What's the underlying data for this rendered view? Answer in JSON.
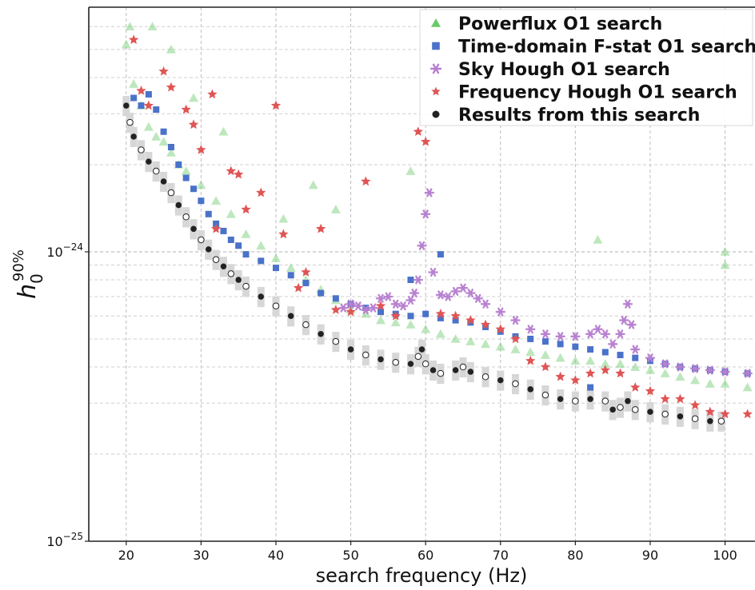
{
  "chart_data": {
    "type": "scatter",
    "title": "",
    "xlabel": "search frequency (Hz)",
    "ylabel": "h_0^{90%}",
    "ylabel_base": "h",
    "ylabel_sub": "0",
    "ylabel_sup": "90%",
    "xlim": [
      15,
      104
    ],
    "ylim": [
      1e-25,
      7e-24
    ],
    "yscale": "log",
    "grid": true,
    "legend_position": "top-right",
    "x_ticks": [
      20,
      30,
      40,
      50,
      60,
      70,
      80,
      90,
      100
    ],
    "x_tick_labels": [
      "20",
      "30",
      "40",
      "50",
      "60",
      "70",
      "80",
      "90",
      "100"
    ],
    "y_ticks": [
      1e-25,
      1e-24
    ],
    "y_tick_bases": [
      "10",
      "10"
    ],
    "y_tick_exponents": [
      "−25",
      "−24"
    ],
    "series": [
      {
        "name": "Powerflux O1 search",
        "marker": "triangle",
        "color": "#6cc96c",
        "points": [
          [
            20,
            5.2e-24
          ],
          [
            20.5,
            6e-24
          ],
          [
            21,
            3.8e-24
          ],
          [
            22,
            3.2e-24
          ],
          [
            23,
            2.7e-24
          ],
          [
            24,
            2.5e-24
          ],
          [
            25,
            2.4e-24
          ],
          [
            26,
            2.2e-24
          ],
          [
            27,
            2e-24
          ],
          [
            28,
            1.9e-24
          ],
          [
            30,
            1.7e-24
          ],
          [
            32,
            1.5e-24
          ],
          [
            34,
            1.35e-24
          ],
          [
            36,
            1.15e-24
          ],
          [
            38,
            1.05e-24
          ],
          [
            40,
            9.5e-25
          ],
          [
            42,
            8.8e-25
          ],
          [
            44,
            8e-25
          ],
          [
            46,
            7.4e-25
          ],
          [
            48,
            6.8e-25
          ],
          [
            50,
            6.3e-25
          ],
          [
            52,
            6.1e-25
          ],
          [
            54,
            5.8e-25
          ],
          [
            56,
            5.7e-25
          ],
          [
            58,
            5.6e-25
          ],
          [
            60,
            5.4e-25
          ],
          [
            62,
            5.2e-25
          ],
          [
            64,
            5e-25
          ],
          [
            66,
            4.9e-25
          ],
          [
            68,
            4.8e-25
          ],
          [
            70,
            4.7e-25
          ],
          [
            72,
            4.6e-25
          ],
          [
            74,
            4.5e-25
          ],
          [
            76,
            4.4e-25
          ],
          [
            78,
            4.3e-25
          ],
          [
            80,
            4.2e-25
          ],
          [
            82,
            4.2e-25
          ],
          [
            84,
            4.1e-25
          ],
          [
            86,
            4.1e-25
          ],
          [
            88,
            4e-25
          ],
          [
            90,
            3.9e-25
          ],
          [
            92,
            3.8e-25
          ],
          [
            94,
            3.7e-25
          ],
          [
            96,
            3.6e-25
          ],
          [
            98,
            3.5e-25
          ],
          [
            100,
            3.5e-25
          ],
          [
            103,
            3.4e-25
          ],
          [
            23.5,
            6e-24
          ],
          [
            26,
            5e-24
          ],
          [
            29,
            3.4e-24
          ],
          [
            33,
            2.6e-24
          ],
          [
            41,
            1.3e-24
          ],
          [
            45,
            1.7e-24
          ],
          [
            48,
            1.4e-24
          ],
          [
            58,
            1.9e-24
          ],
          [
            83,
            1.1e-24
          ],
          [
            100,
            1e-24
          ],
          [
            100,
            9e-25
          ]
        ]
      },
      {
        "name": "Time-domain F-stat O1 search",
        "marker": "square",
        "color": "#4a72c9",
        "points": [
          [
            21,
            3.4e-24
          ],
          [
            22,
            3.2e-24
          ],
          [
            23,
            3.5e-24
          ],
          [
            24,
            3.1e-24
          ],
          [
            25,
            2.6e-24
          ],
          [
            26,
            2.3e-24
          ],
          [
            27,
            2e-24
          ],
          [
            28,
            1.8e-24
          ],
          [
            29,
            1.65e-24
          ],
          [
            30,
            1.5e-24
          ],
          [
            31,
            1.35e-24
          ],
          [
            32,
            1.25e-24
          ],
          [
            33,
            1.18e-24
          ],
          [
            34,
            1.1e-24
          ],
          [
            35,
            1.05e-24
          ],
          [
            36,
            9.8e-25
          ],
          [
            38,
            9.3e-25
          ],
          [
            40,
            8.8e-25
          ],
          [
            42,
            8.3e-25
          ],
          [
            44,
            7.8e-25
          ],
          [
            46,
            7.2e-25
          ],
          [
            48,
            6.9e-25
          ],
          [
            50,
            6.6e-25
          ],
          [
            52,
            6.4e-25
          ],
          [
            54,
            6.2e-25
          ],
          [
            56,
            6.1e-25
          ],
          [
            58,
            6e-25
          ],
          [
            60,
            6.1e-25
          ],
          [
            62,
            5.9e-25
          ],
          [
            64,
            5.8e-25
          ],
          [
            66,
            5.7e-25
          ],
          [
            68,
            5.5e-25
          ],
          [
            70,
            5.3e-25
          ],
          [
            72,
            5.1e-25
          ],
          [
            74,
            5e-25
          ],
          [
            76,
            4.9e-25
          ],
          [
            78,
            4.8e-25
          ],
          [
            80,
            4.7e-25
          ],
          [
            82,
            4.6e-25
          ],
          [
            84,
            4.5e-25
          ],
          [
            86,
            4.4e-25
          ],
          [
            88,
            4.3e-25
          ],
          [
            90,
            4.2e-25
          ],
          [
            92,
            4.1e-25
          ],
          [
            94,
            4e-25
          ],
          [
            96,
            3.95e-25
          ],
          [
            98,
            3.9e-25
          ],
          [
            100,
            3.85e-25
          ],
          [
            103,
            3.8e-25
          ],
          [
            62,
            9.8e-25
          ],
          [
            58,
            8e-25
          ],
          [
            82,
            3.4e-25
          ]
        ]
      },
      {
        "name": "Sky Hough O1 search",
        "marker": "asterisk",
        "color": "#b77fd0",
        "points": [
          [
            49,
            6.4e-25
          ],
          [
            50,
            6.6e-25
          ],
          [
            51,
            6.5e-25
          ],
          [
            52,
            6.3e-25
          ],
          [
            53,
            6.4e-25
          ],
          [
            54,
            6.9e-25
          ],
          [
            55,
            7e-25
          ],
          [
            56,
            6.6e-25
          ],
          [
            57,
            6.5e-25
          ],
          [
            58,
            6.8e-25
          ],
          [
            58.5,
            7.2e-25
          ],
          [
            59,
            8e-25
          ],
          [
            59.5,
            1.05e-24
          ],
          [
            60,
            1.35e-24
          ],
          [
            60.5,
            1.6e-24
          ],
          [
            61,
            8.5e-25
          ],
          [
            62,
            7.1e-25
          ],
          [
            63,
            7e-25
          ],
          [
            64,
            7.3e-25
          ],
          [
            65,
            7.5e-25
          ],
          [
            66,
            7.2e-25
          ],
          [
            67,
            6.9e-25
          ],
          [
            68,
            6.6e-25
          ],
          [
            70,
            6.2e-25
          ],
          [
            72,
            5.8e-25
          ],
          [
            74,
            5.4e-25
          ],
          [
            76,
            5.2e-25
          ],
          [
            78,
            5.1e-25
          ],
          [
            80,
            5.1e-25
          ],
          [
            82,
            5.2e-25
          ],
          [
            83,
            5.4e-25
          ],
          [
            84,
            5.2e-25
          ],
          [
            85,
            4.8e-25
          ],
          [
            86,
            5.2e-25
          ],
          [
            86.5,
            5.8e-25
          ],
          [
            87,
            6.6e-25
          ],
          [
            87.5,
            5.6e-25
          ],
          [
            88,
            4.6e-25
          ],
          [
            90,
            4.3e-25
          ],
          [
            92,
            4.1e-25
          ],
          [
            94,
            4e-25
          ],
          [
            96,
            3.95e-25
          ],
          [
            98,
            3.9e-25
          ],
          [
            100,
            3.85e-25
          ],
          [
            103,
            3.8e-25
          ]
        ]
      },
      {
        "name": "Frequency Hough O1 search",
        "marker": "star",
        "color": "#e05555",
        "points": [
          [
            21,
            5.4e-24
          ],
          [
            22,
            3.6e-24
          ],
          [
            23,
            3.2e-24
          ],
          [
            25,
            4.2e-24
          ],
          [
            26,
            3.7e-24
          ],
          [
            28,
            3.1e-24
          ],
          [
            29,
            2.75e-24
          ],
          [
            30,
            2.25e-24
          ],
          [
            31.5,
            3.5e-24
          ],
          [
            32,
            1.2e-24
          ],
          [
            34,
            1.9e-24
          ],
          [
            35,
            1.85e-24
          ],
          [
            36,
            1.4e-24
          ],
          [
            38,
            1.6e-24
          ],
          [
            40,
            3.2e-24
          ],
          [
            41,
            1.15e-24
          ],
          [
            43,
            7.5e-25
          ],
          [
            44,
            8.5e-25
          ],
          [
            46,
            1.2e-24
          ],
          [
            48,
            6.3e-25
          ],
          [
            50,
            6.2e-25
          ],
          [
            52,
            1.75e-24
          ],
          [
            54,
            6.5e-25
          ],
          [
            56,
            6e-25
          ],
          [
            59,
            2.6e-24
          ],
          [
            60,
            2.4e-24
          ],
          [
            62,
            6.1e-25
          ],
          [
            64,
            6e-25
          ],
          [
            66,
            5.8e-25
          ],
          [
            68,
            5.6e-25
          ],
          [
            70,
            5.4e-25
          ],
          [
            72,
            5e-25
          ],
          [
            74,
            4.2e-25
          ],
          [
            76,
            4e-25
          ],
          [
            78,
            3.7e-25
          ],
          [
            80,
            3.6e-25
          ],
          [
            82,
            3.8e-25
          ],
          [
            84,
            3.9e-25
          ],
          [
            86,
            3.8e-25
          ],
          [
            88,
            3.4e-25
          ],
          [
            90,
            3.3e-25
          ],
          [
            92,
            3.1e-25
          ],
          [
            94,
            3.1e-25
          ],
          [
            96,
            2.95e-25
          ],
          [
            98,
            2.8e-25
          ],
          [
            100,
            2.75e-25
          ],
          [
            103,
            2.75e-25
          ]
        ]
      },
      {
        "name": "Results from this search",
        "marker": "circle",
        "color": "#222222",
        "points": [
          [
            20,
            3.2e-24
          ],
          [
            20.5,
            2.8e-24
          ],
          [
            21,
            2.5e-24
          ],
          [
            22,
            2.25e-24
          ],
          [
            23,
            2.05e-24
          ],
          [
            24,
            1.9e-24
          ],
          [
            25,
            1.75e-24
          ],
          [
            26,
            1.6e-24
          ],
          [
            27,
            1.45e-24
          ],
          [
            28,
            1.32e-24
          ],
          [
            29,
            1.2e-24
          ],
          [
            30,
            1.1e-24
          ],
          [
            31,
            1.02e-24
          ],
          [
            32,
            9.4e-25
          ],
          [
            33,
            8.9e-25
          ],
          [
            34,
            8.4e-25
          ],
          [
            35,
            8e-25
          ],
          [
            36,
            7.6e-25
          ],
          [
            38,
            7e-25
          ],
          [
            40,
            6.5e-25
          ],
          [
            42,
            6e-25
          ],
          [
            44,
            5.6e-25
          ],
          [
            46,
            5.2e-25
          ],
          [
            48,
            4.9e-25
          ],
          [
            50,
            4.6e-25
          ],
          [
            52,
            4.4e-25
          ],
          [
            54,
            4.25e-25
          ],
          [
            56,
            4.15e-25
          ],
          [
            58,
            4.1e-25
          ],
          [
            59,
            4.35e-25
          ],
          [
            59.5,
            4.6e-25
          ],
          [
            60,
            4.1e-25
          ],
          [
            61,
            3.9e-25
          ],
          [
            62,
            3.8e-25
          ],
          [
            64,
            3.9e-25
          ],
          [
            65,
            4e-25
          ],
          [
            66,
            3.85e-25
          ],
          [
            68,
            3.7e-25
          ],
          [
            70,
            3.6e-25
          ],
          [
            72,
            3.5e-25
          ],
          [
            74,
            3.35e-25
          ],
          [
            76,
            3.2e-25
          ],
          [
            78,
            3.1e-25
          ],
          [
            80,
            3.05e-25
          ],
          [
            82,
            3.1e-25
          ],
          [
            84,
            3.05e-25
          ],
          [
            85,
            2.85e-25
          ],
          [
            86,
            2.9e-25
          ],
          [
            87,
            3.05e-25
          ],
          [
            88,
            2.85e-25
          ],
          [
            90,
            2.8e-25
          ],
          [
            92,
            2.75e-25
          ],
          [
            94,
            2.7e-25
          ],
          [
            96,
            2.65e-25
          ],
          [
            98,
            2.6e-25
          ],
          [
            99.5,
            2.6e-25
          ]
        ]
      }
    ]
  }
}
